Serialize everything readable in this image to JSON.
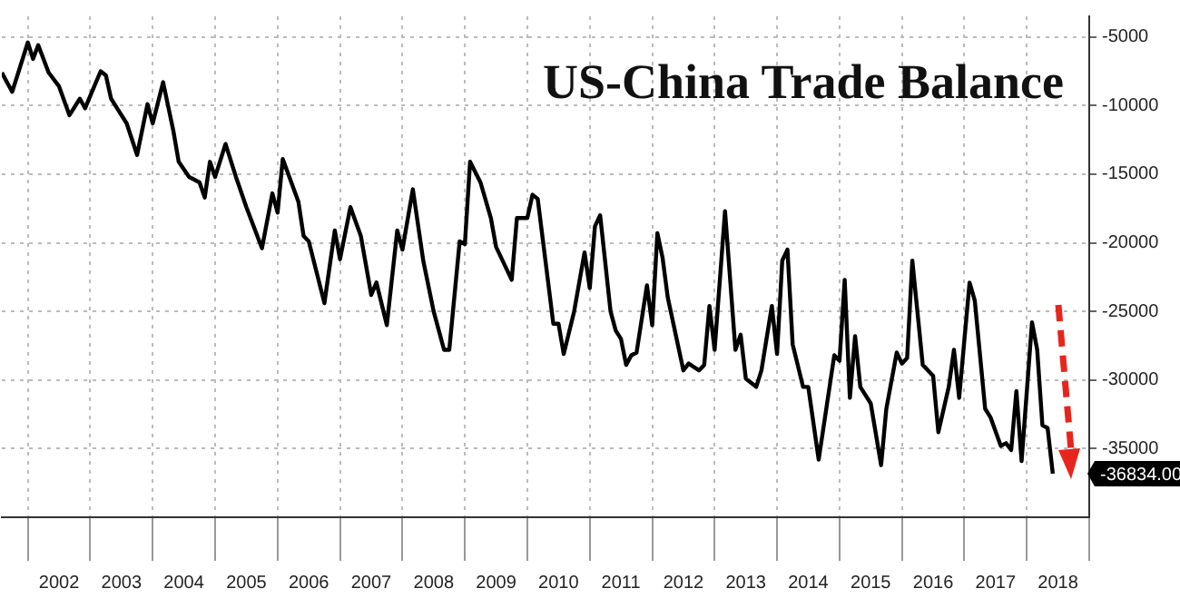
{
  "chart_data": {
    "type": "line",
    "title": "US-China Trade Balance",
    "x": [
      "2001-08",
      "2001-10",
      "2002-01",
      "2002-02",
      "2002-03",
      "2002-05",
      "2002-07",
      "2002-09",
      "2002-11",
      "2002-12",
      "2003-01",
      "2003-03",
      "2003-04",
      "2003-05",
      "2003-06",
      "2003-08",
      "2003-10",
      "2003-12",
      "2004-01",
      "2004-03",
      "2004-05",
      "2004-06",
      "2004-08",
      "2004-10",
      "2004-11",
      "2004-12",
      "2005-01",
      "2005-03",
      "2005-05",
      "2005-07",
      "2005-10",
      "2005-12",
      "2006-01",
      "2006-02",
      "2006-05",
      "2006-06",
      "2006-07",
      "2006-10",
      "2006-12",
      "2007-01",
      "2007-03",
      "2007-05",
      "2007-07",
      "2007-08",
      "2007-10",
      "2007-12",
      "2008-01",
      "2008-03",
      "2008-05",
      "2008-07",
      "2008-09",
      "2008-10",
      "2008-12",
      "2009-01",
      "2009-02",
      "2009-04",
      "2009-06",
      "2009-07",
      "2009-10",
      "2009-11",
      "2010-01",
      "2010-02",
      "2010-03",
      "2010-06",
      "2010-07",
      "2010-08",
      "2010-10",
      "2010-12",
      "2011-01",
      "2011-02",
      "2011-03",
      "2011-05",
      "2011-06",
      "2011-07",
      "2011-08",
      "2011-09",
      "2011-10",
      "2011-12",
      "2012-01",
      "2012-02",
      "2012-03",
      "2012-04",
      "2012-07",
      "2012-08",
      "2012-10",
      "2012-11",
      "2012-12",
      "2013-01",
      "2013-03",
      "2013-05",
      "2013-06",
      "2013-07",
      "2013-09",
      "2013-10",
      "2013-12",
      "2014-01",
      "2014-02",
      "2014-03",
      "2014-04",
      "2014-06",
      "2014-07",
      "2014-09",
      "2014-12",
      "2015-01",
      "2015-02",
      "2015-03",
      "2015-04",
      "2015-05",
      "2015-07",
      "2015-09",
      "2015-10",
      "2015-12",
      "2016-01",
      "2016-02",
      "2016-03",
      "2016-05",
      "2016-07",
      "2016-08",
      "2016-10",
      "2016-11",
      "2016-12",
      "2017-02",
      "2017-03",
      "2017-05",
      "2017-06",
      "2017-08",
      "2017-09",
      "2017-10",
      "2017-11",
      "2017-12",
      "2018-02",
      "2018-03",
      "2018-04",
      "2018-05",
      "2018-06"
    ],
    "series": [
      {
        "color": "#000000",
        "values": [
          -7600,
          -9000,
          -5400,
          -6600,
          -5600,
          -7600,
          -8600,
          -10700,
          -9500,
          -10200,
          -9300,
          -7500,
          -7800,
          -9500,
          -10100,
          -11300,
          -13600,
          -9900,
          -11300,
          -8300,
          -11900,
          -14100,
          -15200,
          -15600,
          -16700,
          -14100,
          -15200,
          -12800,
          -15200,
          -17400,
          -20400,
          -16400,
          -17800,
          -13900,
          -17000,
          -19500,
          -19900,
          -24400,
          -19100,
          -21200,
          -17400,
          -19500,
          -23800,
          -22900,
          -26000,
          -19100,
          -20500,
          -16100,
          -21300,
          -25000,
          -27800,
          -27800,
          -19900,
          -20100,
          -14100,
          -15600,
          -18200,
          -20300,
          -22700,
          -18200,
          -18200,
          -16500,
          -16800,
          -25900,
          -25900,
          -28100,
          -25000,
          -20700,
          -23300,
          -18800,
          -18000,
          -25000,
          -26400,
          -27000,
          -28900,
          -28200,
          -28000,
          -23100,
          -26000,
          -19300,
          -21100,
          -24000,
          -29300,
          -28800,
          -29300,
          -28900,
          -24600,
          -27800,
          -17700,
          -27800,
          -26700,
          -29900,
          -30500,
          -29300,
          -24600,
          -28100,
          -21300,
          -20500,
          -27400,
          -30500,
          -30500,
          -35800,
          -28200,
          -28600,
          -22700,
          -31300,
          -26800,
          -30500,
          -31700,
          -36200,
          -32100,
          -28000,
          -28800,
          -28400,
          -21300,
          -28900,
          -29700,
          -33800,
          -30500,
          -27800,
          -31300,
          -22900,
          -24200,
          -32100,
          -32700,
          -34800,
          -34600,
          -35100,
          -30800,
          -35900,
          -25800,
          -27800,
          -33300,
          -33500,
          -36834
        ]
      }
    ],
    "xlim": [
      "2001-08",
      "2019-01"
    ],
    "xticks": [
      {
        "value": "2002-01",
        "label": null
      },
      {
        "value": "2002-07",
        "label": "2002"
      },
      {
        "value": "2003-01",
        "label": null
      },
      {
        "value": "2003-07",
        "label": "2003"
      },
      {
        "value": "2004-01",
        "label": null
      },
      {
        "value": "2004-07",
        "label": "2004"
      },
      {
        "value": "2005-01",
        "label": null
      },
      {
        "value": "2005-07",
        "label": "2005"
      },
      {
        "value": "2006-01",
        "label": null
      },
      {
        "value": "2006-07",
        "label": "2006"
      },
      {
        "value": "2007-01",
        "label": null
      },
      {
        "value": "2007-07",
        "label": "2007"
      },
      {
        "value": "2008-01",
        "label": null
      },
      {
        "value": "2008-07",
        "label": "2008"
      },
      {
        "value": "2009-01",
        "label": null
      },
      {
        "value": "2009-07",
        "label": "2009"
      },
      {
        "value": "2010-01",
        "label": null
      },
      {
        "value": "2010-07",
        "label": "2010"
      },
      {
        "value": "2011-01",
        "label": null
      },
      {
        "value": "2011-07",
        "label": "2011"
      },
      {
        "value": "2012-01",
        "label": null
      },
      {
        "value": "2012-07",
        "label": "2012"
      },
      {
        "value": "2013-01",
        "label": null
      },
      {
        "value": "2013-07",
        "label": "2013"
      },
      {
        "value": "2014-01",
        "label": null
      },
      {
        "value": "2014-07",
        "label": "2014"
      },
      {
        "value": "2015-01",
        "label": null
      },
      {
        "value": "2015-07",
        "label": "2015"
      },
      {
        "value": "2016-01",
        "label": null
      },
      {
        "value": "2016-07",
        "label": "2016"
      },
      {
        "value": "2017-01",
        "label": null
      },
      {
        "value": "2017-07",
        "label": "2017"
      },
      {
        "value": "2018-01",
        "label": null
      },
      {
        "value": "2018-07",
        "label": "2018"
      },
      {
        "value": "2019-01",
        "label": null
      }
    ],
    "ylim": [
      -40000,
      -3500
    ],
    "yticks": [
      -35000,
      -30000,
      -25000,
      -20000,
      -15000,
      -10000,
      -5000
    ],
    "annotations": [
      {
        "text": "-36834.00",
        "x": "2018-06",
        "y": -36834
      }
    ],
    "grid": true,
    "legend": false,
    "marker": "none",
    "line_style": "solid"
  }
}
